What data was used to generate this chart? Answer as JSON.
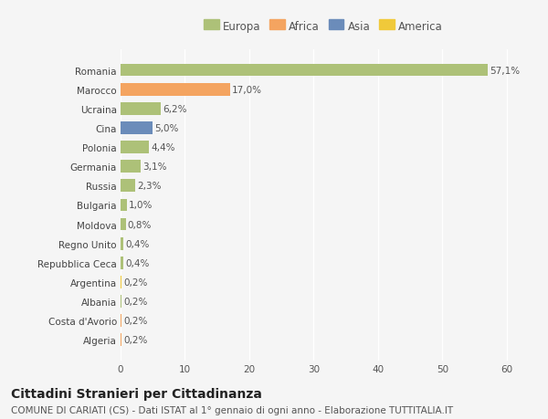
{
  "countries": [
    "Romania",
    "Marocco",
    "Ucraina",
    "Cina",
    "Polonia",
    "Germania",
    "Russia",
    "Bulgaria",
    "Moldova",
    "Regno Unito",
    "Repubblica Ceca",
    "Argentina",
    "Albania",
    "Costa d'Avorio",
    "Algeria"
  ],
  "values": [
    57.1,
    17.0,
    6.2,
    5.0,
    4.4,
    3.1,
    2.3,
    1.0,
    0.8,
    0.4,
    0.4,
    0.2,
    0.2,
    0.2,
    0.2
  ],
  "labels": [
    "57,1%",
    "17,0%",
    "6,2%",
    "5,0%",
    "4,4%",
    "3,1%",
    "2,3%",
    "1,0%",
    "0,8%",
    "0,4%",
    "0,4%",
    "0,2%",
    "0,2%",
    "0,2%",
    "0,2%"
  ],
  "colors": [
    "#adc178",
    "#f4a460",
    "#adc178",
    "#6b8cba",
    "#adc178",
    "#adc178",
    "#adc178",
    "#adc178",
    "#adc178",
    "#adc178",
    "#adc178",
    "#f0c93a",
    "#adc178",
    "#f4a460",
    "#f4a460"
  ],
  "legend": [
    {
      "label": "Europa",
      "color": "#adc178"
    },
    {
      "label": "Africa",
      "color": "#f4a460"
    },
    {
      "label": "Asia",
      "color": "#6b8cba"
    },
    {
      "label": "America",
      "color": "#f0c93a"
    }
  ],
  "xlim": [
    0,
    63
  ],
  "xticks": [
    0,
    10,
    20,
    30,
    40,
    50,
    60
  ],
  "title": "Cittadini Stranieri per Cittadinanza",
  "subtitle": "COMUNE DI CARIATI (CS) - Dati ISTAT al 1° gennaio di ogni anno - Elaborazione TUTTITALIA.IT",
  "bg_color": "#f5f5f5",
  "grid_color": "#ffffff",
  "bar_height": 0.65,
  "label_fontsize": 7.5,
  "tick_fontsize": 7.5,
  "title_fontsize": 10,
  "subtitle_fontsize": 7.5
}
